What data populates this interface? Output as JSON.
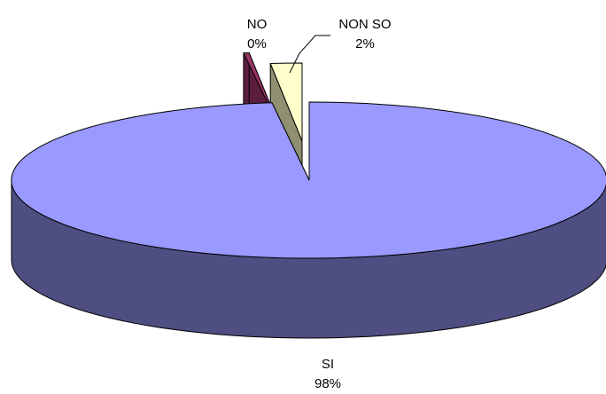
{
  "chart_data": {
    "type": "pie",
    "style": "3d-exploded",
    "slices": [
      {
        "label": "SI",
        "value": 98,
        "display": "98%",
        "top_color": "#9999ff",
        "side_color": "#4e4e82"
      },
      {
        "label": "NO",
        "value": 0.3,
        "display": "0%",
        "top_color": "#993366",
        "side_color": "#5a1e3c"
      },
      {
        "label": "NON SO",
        "value": 1.7,
        "display": "2%",
        "top_color": "#ffffcc",
        "side_color": "#8f8f72"
      }
    ]
  }
}
